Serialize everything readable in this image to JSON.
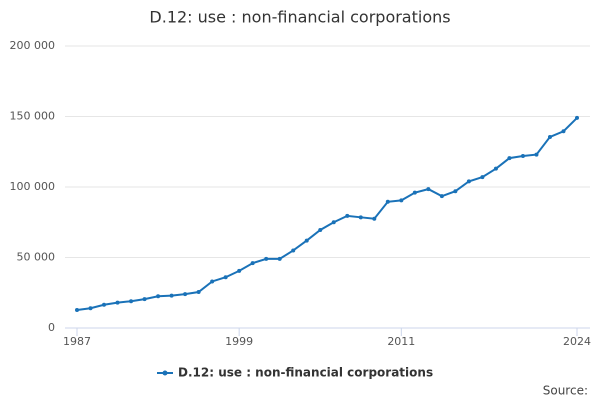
{
  "chart_data": {
    "type": "line",
    "title": "D.12: use : non-financial corporations",
    "x": [
      1987,
      1988,
      1989,
      1990,
      1991,
      1992,
      1993,
      1994,
      1995,
      1996,
      1997,
      1998,
      1999,
      2000,
      2001,
      2002,
      2003,
      2004,
      2005,
      2006,
      2007,
      2008,
      2009,
      2010,
      2011,
      2012,
      2013,
      2014,
      2015,
      2016,
      2017,
      2018,
      2019,
      2020,
      2021,
      2022,
      2023,
      2024
    ],
    "series": [
      {
        "name": "D.12: use : non-financial corporations",
        "color": "#1a72b8",
        "values": [
          12800,
          14000,
          16500,
          18000,
          19000,
          20500,
          22500,
          23000,
          24000,
          25500,
          33000,
          36000,
          40500,
          46000,
          49000,
          49000,
          55000,
          62000,
          69500,
          75000,
          79500,
          78500,
          77500,
          89500,
          90500,
          96000,
          98500,
          93500,
          97000,
          104000,
          107000,
          113000,
          120500,
          122000,
          123000,
          135500,
          139500,
          149000
        ]
      }
    ],
    "xlim": [
      1987,
      2024
    ],
    "xticks": [
      1987,
      1999,
      2011,
      2024
    ],
    "ylim": [
      0,
      200000
    ],
    "yticks": [
      0,
      {
        "value": 50000,
        "label": "50 000"
      },
      {
        "value": 100000,
        "label": "100 000"
      },
      {
        "value": 150000,
        "label": "150 000"
      },
      {
        "value": 200000,
        "label": "200 000"
      }
    ],
    "grid": true,
    "legend": "bottom",
    "source_label": "Source:"
  }
}
